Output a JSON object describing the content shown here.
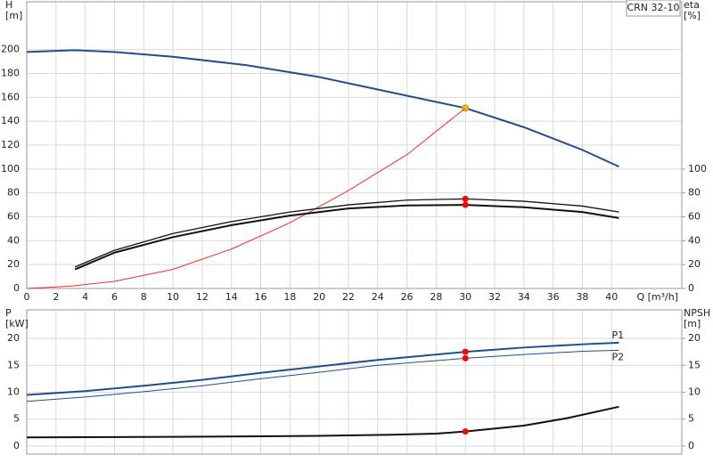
{
  "chart_data": [
    {
      "type": "line",
      "ylabel": [
        "H",
        "[m]"
      ],
      "y2label": [
        "eta",
        "[%]"
      ],
      "xlabel": "Q [m³/h]",
      "annotation": "CRN 32-10",
      "xlim": [
        0,
        44.8
      ],
      "xticks": [
        0,
        2,
        4,
        6,
        8,
        10,
        12,
        14,
        16,
        18,
        20,
        22,
        24,
        26,
        28,
        30,
        32,
        34,
        36,
        38,
        40
      ],
      "ylim": [
        0,
        240
      ],
      "yticks": [
        0,
        20,
        40,
        60,
        80,
        100,
        120,
        140,
        160,
        180,
        200
      ],
      "y2lim": [
        0,
        240
      ],
      "y2ticks": [
        0,
        20,
        40,
        60,
        80,
        100
      ],
      "grid": true,
      "series": [
        {
          "color": "#1f4e8c",
          "width": 2,
          "point_color": "#f5c400",
          "x": [
            0,
            3.3,
            6,
            10,
            15,
            20,
            25,
            30,
            34,
            38,
            40.5
          ],
          "values": [
            198,
            199.5,
            198,
            194,
            187,
            177,
            164,
            151,
            135,
            116,
            102
          ]
        },
        {
          "color": "#ff2a2a",
          "width": 1,
          "x": [
            0,
            3,
            6,
            10,
            14,
            18,
            22,
            26,
            30
          ],
          "values": [
            0,
            2,
            6,
            16,
            33,
            55,
            82,
            112,
            151
          ]
        },
        {
          "color": "#111111",
          "width": 1.3,
          "axis": "y2",
          "point_color": "#ff0000",
          "x": [
            3.3,
            6,
            10,
            14,
            18,
            22,
            26,
            30,
            34,
            38,
            40.5
          ],
          "values": [
            18,
            32,
            46,
            56,
            64,
            70,
            74,
            75,
            73,
            69,
            64
          ]
        },
        {
          "color": "#111111",
          "width": 2,
          "axis": "y2",
          "point_color": "#ff0000",
          "x": [
            3.3,
            6,
            10,
            14,
            18,
            22,
            26,
            30,
            34,
            38,
            40.5
          ],
          "values": [
            16,
            30,
            43,
            53,
            61,
            67,
            69.5,
            70,
            68,
            64,
            59
          ]
        }
      ],
      "operating_point": {
        "x": 30
      }
    },
    {
      "type": "line",
      "ylabel": [
        "P",
        "[kW]"
      ],
      "y2label": [
        "NPSH",
        "[m]"
      ],
      "ylim": [
        -1.5,
        25.3
      ],
      "yticks": [
        0,
        5,
        10,
        15,
        20
      ],
      "y2lim": [
        -1.5,
        25.3
      ],
      "y2ticks": [
        0,
        5,
        10,
        15,
        20
      ],
      "grid": true,
      "series": [
        {
          "name": "P1",
          "color": "#1f4e8c",
          "width": 2,
          "point_color": "#ff0000",
          "x": [
            0,
            4,
            8,
            12,
            16,
            20,
            24,
            30,
            34,
            38,
            40.5
          ],
          "values": [
            9.5,
            10.2,
            11.2,
            12.3,
            13.6,
            14.8,
            16,
            17.5,
            18.3,
            18.9,
            19.2
          ]
        },
        {
          "name": "P2",
          "color": "#1f4e8c",
          "width": 1,
          "point_color": "#ff0000",
          "x": [
            0,
            4,
            8,
            12,
            16,
            20,
            24,
            30,
            34,
            38,
            40.5
          ],
          "values": [
            8.3,
            9.1,
            10.1,
            11.2,
            12.5,
            13.7,
            15,
            16.3,
            17,
            17.6,
            17.8
          ]
        },
        {
          "color": "#111111",
          "width": 2,
          "axis": "y2",
          "point_color": "#ff0000",
          "x": [
            0,
            10,
            16,
            20,
            25,
            28,
            30,
            34,
            37,
            40.5
          ],
          "values": [
            1.6,
            1.7,
            1.8,
            1.9,
            2.1,
            2.3,
            2.7,
            3.8,
            5.2,
            7.3
          ]
        }
      ],
      "operating_point": {
        "x": 30
      }
    }
  ]
}
